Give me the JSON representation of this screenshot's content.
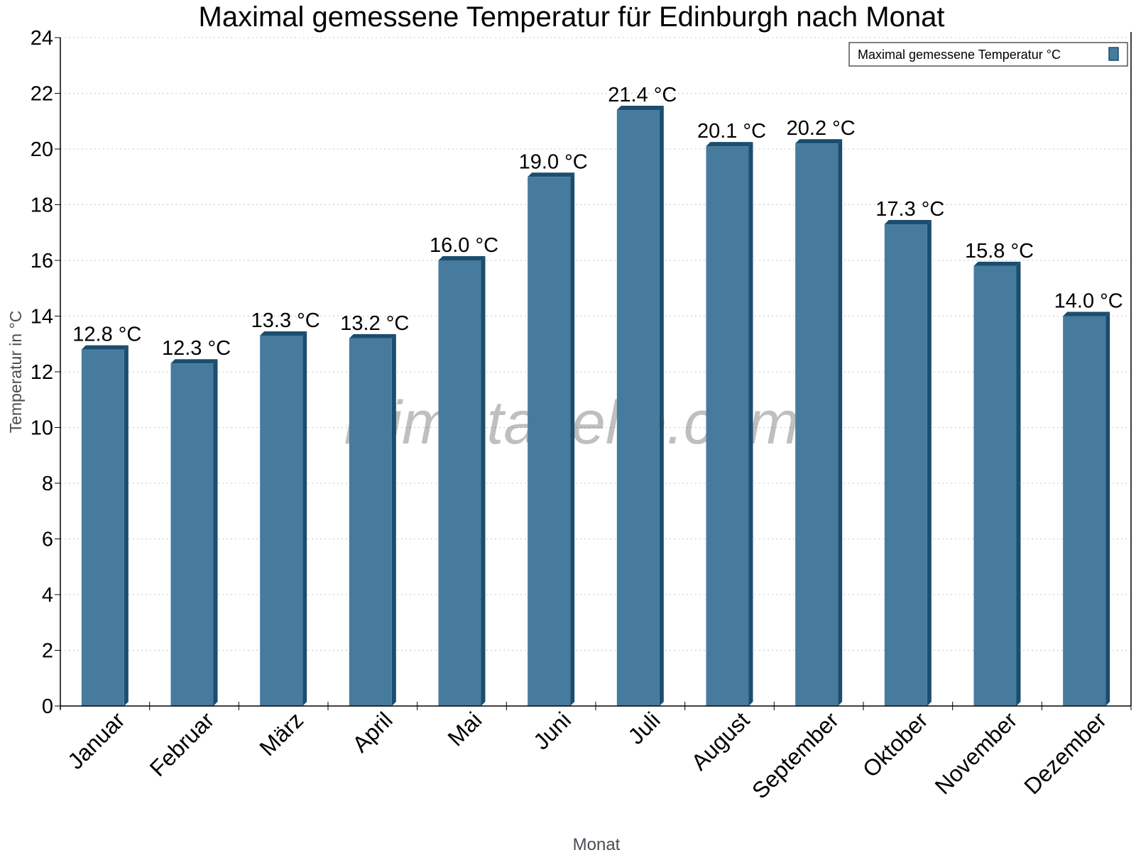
{
  "chart_data": {
    "type": "bar",
    "title": "Maximal gemessene Temperatur für Edinburgh nach Monat",
    "xlabel": "Monat",
    "ylabel": "Temperatur in °C",
    "categories": [
      "Januar",
      "Februar",
      "März",
      "April",
      "Mai",
      "Juni",
      "Juli",
      "August",
      "September",
      "Oktober",
      "November",
      "Dezember"
    ],
    "series": [
      {
        "name": "Maximal gemessene Temperatur °C",
        "values": [
          12.8,
          12.3,
          13.3,
          13.2,
          16.0,
          19.0,
          21.4,
          20.1,
          20.2,
          17.3,
          15.8,
          14.0
        ],
        "data_labels": [
          "12.8 °C",
          "12.3 °C",
          "13.3 °C",
          "13.2 °C",
          "16.0 °C",
          "19.0 °C",
          "21.4 °C",
          "20.1 °C",
          "20.2 °C",
          "17.3 °C",
          "15.8 °C",
          "14.0 °C"
        ]
      }
    ],
    "ylim": [
      0,
      24
    ],
    "yticks": [
      0,
      2,
      4,
      6,
      8,
      10,
      12,
      14,
      16,
      18,
      20,
      22,
      24
    ],
    "grid": true,
    "legend_position": "top-right",
    "watermark": "klimatabelle.com",
    "colors": {
      "bar": "#467b9d",
      "bar_side": "#1b4d6e",
      "grid": "#c8c8c8"
    }
  }
}
